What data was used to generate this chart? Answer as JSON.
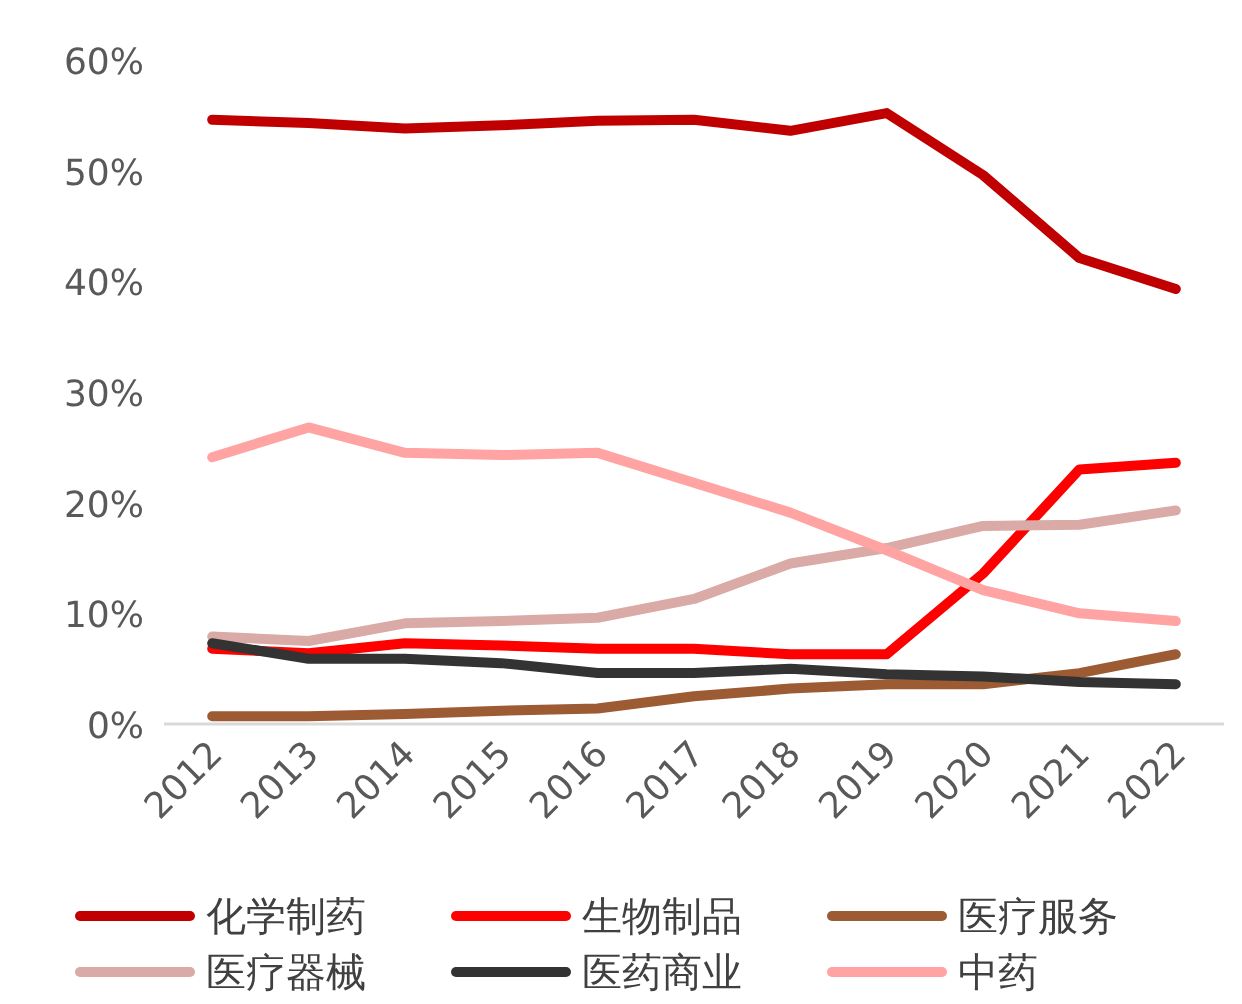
{
  "chart_data": {
    "type": "line",
    "categories": [
      "2012",
      "2013",
      "2014",
      "2015",
      "2016",
      "2017",
      "2018",
      "2019",
      "2020",
      "2021",
      "2022"
    ],
    "ylim": [
      0,
      60
    ],
    "yticks": [
      {
        "value": 0,
        "label": "0%"
      },
      {
        "value": 10,
        "label": "10%"
      },
      {
        "value": 20,
        "label": "20%"
      },
      {
        "value": 30,
        "label": "30%"
      },
      {
        "value": 40,
        "label": "40%"
      },
      {
        "value": 50,
        "label": "50%"
      },
      {
        "value": 60,
        "label": "60%"
      }
    ],
    "grid": false,
    "legend": "bottom",
    "line_style": "solid",
    "series": [
      {
        "name": "化学制药",
        "color": "#c00000",
        "values": [
          54.6,
          54.3,
          53.8,
          54.1,
          54.5,
          54.6,
          53.6,
          55.2,
          49.6,
          42.1,
          39.3
        ]
      },
      {
        "name": "生物制品",
        "color": "#ff0000",
        "values": [
          6.8,
          6.4,
          7.3,
          7.1,
          6.8,
          6.8,
          6.3,
          6.3,
          13.6,
          23.0,
          23.6
        ]
      },
      {
        "name": "医疗服务",
        "color": "#9c5b32",
        "values": [
          0.7,
          0.7,
          0.9,
          1.2,
          1.4,
          2.5,
          3.2,
          3.6,
          3.6,
          4.6,
          6.3
        ]
      },
      {
        "name": "医疗器械",
        "color": "#d9aaa6",
        "values": [
          7.9,
          7.5,
          9.1,
          9.3,
          9.6,
          11.3,
          14.5,
          15.9,
          17.9,
          18.0,
          19.3
        ]
      },
      {
        "name": "医药商业",
        "color": "#333333",
        "values": [
          7.3,
          5.9,
          5.9,
          5.5,
          4.6,
          4.6,
          5.0,
          4.5,
          4.3,
          3.8,
          3.6
        ]
      },
      {
        "name": "中药",
        "color": "#ffa3a3",
        "values": [
          24.1,
          26.8,
          24.5,
          24.3,
          24.5,
          21.8,
          19.1,
          15.7,
          12.1,
          10.0,
          9.3
        ]
      }
    ]
  }
}
